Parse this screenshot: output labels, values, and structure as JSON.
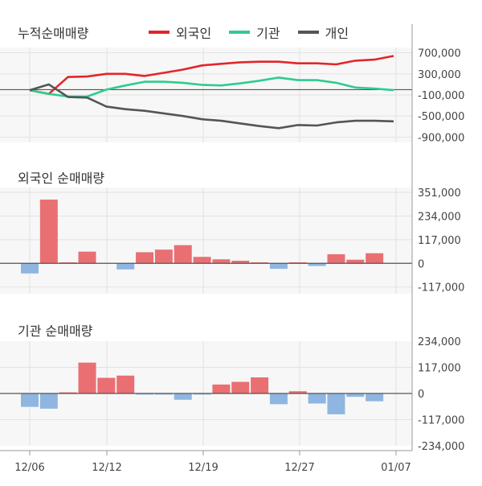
{
  "x_labels": [
    "12/06",
    "12/12",
    "12/19",
    "12/27",
    "01/07"
  ],
  "colors": {
    "foreign": "#e3262a",
    "institution": "#2ecc8f",
    "individual": "#555555",
    "positive_bar": "#e96f73",
    "negative_bar": "#8fb6e0"
  },
  "chart_data": [
    {
      "type": "line",
      "title": "누적순매매량",
      "x_index": [
        0,
        1,
        2,
        3,
        4,
        5,
        6,
        7,
        8,
        9,
        10,
        11,
        12,
        13,
        14,
        15,
        16,
        17,
        18,
        19
      ],
      "x_tick_labels": {
        "0": "12/06",
        "4": "12/12",
        "9": "12/19",
        "14": "12/27",
        "19": "01/07"
      },
      "ylim": [
        -1000000,
        800000
      ],
      "y_ticks": [
        700000,
        300000,
        -100000,
        -500000,
        -900000
      ],
      "y_tick_labels": [
        "700,000",
        "300,000",
        "-100,000",
        "-500,000",
        "-900,000"
      ],
      "series": [
        {
          "name": "외국인",
          "values": [
            -10000,
            -80000,
            240000,
            250000,
            300000,
            300000,
            260000,
            320000,
            380000,
            460000,
            490000,
            520000,
            530000,
            530000,
            500000,
            500000,
            480000,
            550000,
            570000,
            640000
          ]
        },
        {
          "name": "기관",
          "values": [
            -10000,
            -80000,
            -130000,
            -130000,
            0,
            80000,
            150000,
            150000,
            130000,
            90000,
            80000,
            120000,
            170000,
            230000,
            180000,
            180000,
            130000,
            40000,
            20000,
            -10000
          ]
        },
        {
          "name": "개인",
          "values": [
            -10000,
            100000,
            -140000,
            -150000,
            -320000,
            -370000,
            -400000,
            -450000,
            -500000,
            -560000,
            -590000,
            -640000,
            -690000,
            -730000,
            -670000,
            -680000,
            -620000,
            -590000,
            -590000,
            -600000
          ]
        }
      ]
    },
    {
      "type": "bar",
      "title": "외국인 순매매량",
      "x_index": [
        0,
        1,
        2,
        3,
        4,
        5,
        6,
        7,
        8,
        9,
        10,
        11,
        12,
        13,
        14,
        15,
        16,
        17,
        18,
        19
      ],
      "ylim": [
        -150000,
        375000
      ],
      "y_ticks": [
        351000,
        234000,
        117000,
        0,
        -117000
      ],
      "y_tick_labels": [
        "351,000",
        "234,000",
        "117,000",
        "0",
        "-117,000"
      ],
      "values": [
        -50000,
        315000,
        5000,
        58000,
        0,
        -30000,
        55000,
        68000,
        90000,
        32000,
        20000,
        13000,
        5000,
        -27000,
        5000,
        -13000,
        45000,
        18000,
        50000,
        0
      ]
    },
    {
      "type": "bar",
      "title": "기관 순매매량",
      "x_index": [
        0,
        1,
        2,
        3,
        4,
        5,
        6,
        7,
        8,
        9,
        10,
        11,
        12,
        13,
        14,
        15,
        16,
        17,
        18,
        19
      ],
      "ylim": [
        -234000,
        234000
      ],
      "y_ticks": [
        234000,
        117000,
        0,
        -117000,
        -234000
      ],
      "y_tick_labels": [
        "234,000",
        "117,000",
        "0",
        "-117,000",
        "-234,000"
      ],
      "values": [
        -60000,
        -68000,
        5000,
        138000,
        70000,
        80000,
        -5000,
        -5000,
        -28000,
        -5000,
        40000,
        52000,
        72000,
        -48000,
        10000,
        -45000,
        -93000,
        -15000,
        -35000,
        0
      ]
    }
  ]
}
